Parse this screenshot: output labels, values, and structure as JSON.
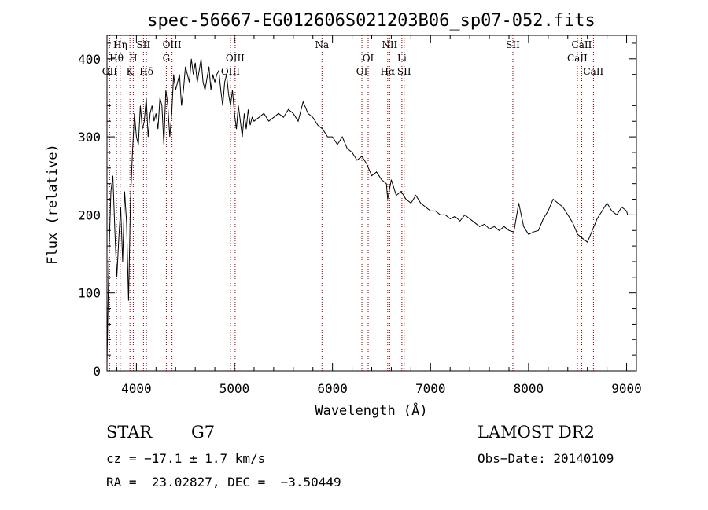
{
  "chart_data": {
    "type": "line",
    "title": "spec-56667-EG012606S021203B06_sp07-052.fits",
    "xlabel": "Wavelength (Å)",
    "ylabel": "Flux (relative)",
    "xlim": [
      3700,
      9100
    ],
    "ylim": [
      0,
      430
    ],
    "x_ticks": [
      4000,
      5000,
      6000,
      7000,
      8000,
      9000
    ],
    "y_ticks": [
      0,
      100,
      200,
      300,
      400
    ],
    "grid": false,
    "series": [
      {
        "x": [
          3700,
          3720,
          3740,
          3760,
          3780,
          3800,
          3820,
          3840,
          3860,
          3880,
          3900,
          3920,
          3940,
          3960,
          3980,
          4000,
          4020,
          4040,
          4060,
          4080,
          4100,
          4120,
          4140,
          4160,
          4180,
          4200,
          4220,
          4240,
          4260,
          4280,
          4300,
          4320,
          4340,
          4360,
          4380,
          4400,
          4420,
          4440,
          4460,
          4480,
          4500,
          4520,
          4540,
          4560,
          4580,
          4600,
          4620,
          4640,
          4660,
          4680,
          4700,
          4720,
          4740,
          4760,
          4780,
          4800,
          4820,
          4840,
          4860,
          4880,
          4900,
          4920,
          4940,
          4960,
          4980,
          5000,
          5020,
          5040,
          5060,
          5080,
          5100,
          5120,
          5140,
          5160,
          5180,
          5200,
          5250,
          5300,
          5350,
          5400,
          5450,
          5500,
          5550,
          5600,
          5650,
          5700,
          5750,
          5800,
          5850,
          5900,
          5950,
          6000,
          6050,
          6100,
          6150,
          6200,
          6250,
          6300,
          6350,
          6400,
          6450,
          6500,
          6550,
          6563,
          6600,
          6650,
          6700,
          6750,
          6800,
          6850,
          6900,
          6950,
          7000,
          7050,
          7100,
          7150,
          7200,
          7250,
          7300,
          7350,
          7400,
          7450,
          7500,
          7550,
          7600,
          7650,
          7700,
          7750,
          7800,
          7850,
          7900,
          7950,
          8000,
          8050,
          8100,
          8150,
          8200,
          8250,
          8300,
          8350,
          8400,
          8450,
          8500,
          8550,
          8600,
          8650,
          8700,
          8750,
          8800,
          8850,
          8900,
          8950,
          9000,
          9010
        ],
        "y": [
          10,
          150,
          230,
          250,
          180,
          120,
          170,
          210,
          140,
          230,
          190,
          90,
          220,
          280,
          330,
          300,
          290,
          340,
          310,
          320,
          350,
          300,
          330,
          340,
          320,
          330,
          310,
          350,
          340,
          290,
          360,
          340,
          300,
          330,
          380,
          360,
          370,
          380,
          340,
          360,
          390,
          380,
          370,
          400,
          380,
          395,
          370,
          385,
          400,
          370,
          360,
          375,
          390,
          360,
          380,
          370,
          380,
          385,
          360,
          340,
          370,
          380,
          355,
          340,
          360,
          330,
          310,
          340,
          320,
          300,
          330,
          310,
          335,
          315,
          325,
          320,
          325,
          330,
          320,
          325,
          330,
          325,
          335,
          330,
          320,
          345,
          330,
          325,
          315,
          310,
          300,
          300,
          290,
          300,
          285,
          280,
          270,
          275,
          265,
          250,
          255,
          245,
          240,
          220,
          245,
          225,
          230,
          220,
          215,
          225,
          215,
          210,
          205,
          205,
          200,
          200,
          195,
          198,
          192,
          200,
          195,
          190,
          185,
          188,
          182,
          185,
          180,
          185,
          180,
          178,
          215,
          185,
          175,
          178,
          180,
          195,
          205,
          220,
          215,
          210,
          200,
          190,
          175,
          170,
          165,
          180,
          195,
          205,
          215,
          205,
          200,
          210,
          205,
          200
        ]
      }
    ],
    "spectral_lines": [
      {
        "label": "Hη",
        "x": 3835,
        "row": 1
      },
      {
        "label": "Hθ",
        "x": 3797,
        "row": 2
      },
      {
        "label": "OII",
        "x": 3727,
        "row": 3
      },
      {
        "label": "H",
        "x": 3968,
        "row": 2
      },
      {
        "label": "K",
        "x": 3934,
        "row": 3
      },
      {
        "label": "SII",
        "x": 4072,
        "row": 1
      },
      {
        "label": "Hδ",
        "x": 4102,
        "row": 3
      },
      {
        "label": "OIII",
        "x": 4363,
        "row": 1
      },
      {
        "label": "G",
        "x": 4305,
        "row": 2
      },
      {
        "label": "OIII",
        "x": 5007,
        "row": 2
      },
      {
        "label": "OIII",
        "x": 4959,
        "row": 3
      },
      {
        "label": "Na",
        "x": 5893,
        "row": 1
      },
      {
        "label": "OI",
        "x": 6364,
        "row": 2
      },
      {
        "label": "OI",
        "x": 6300,
        "row": 3
      },
      {
        "label": "NII",
        "x": 6583,
        "row": 1
      },
      {
        "label": "Li",
        "x": 6708,
        "row": 2
      },
      {
        "label": "Hα",
        "x": 6563,
        "row": 3
      },
      {
        "label": "SII",
        "x": 6731,
        "row": 3
      },
      {
        "label": "SII",
        "x": 7840,
        "row": 1
      },
      {
        "label": "CaII",
        "x": 8542,
        "row": 1
      },
      {
        "label": "CaII",
        "x": 8498,
        "row": 2
      },
      {
        "label": "CaII",
        "x": 8662,
        "row": 3
      }
    ]
  },
  "info": {
    "object_class": "STAR",
    "subclass": "G7",
    "survey": "LAMOST DR2",
    "cz": "cz = −17.1 ± 1.7 km/s",
    "obs_date": "Obs−Date: 20140109",
    "coords": "RA =  23.02827, DEC =  −3.50449"
  },
  "colors": {
    "spectrum": "#000000",
    "line_marker": "#8b0000"
  }
}
